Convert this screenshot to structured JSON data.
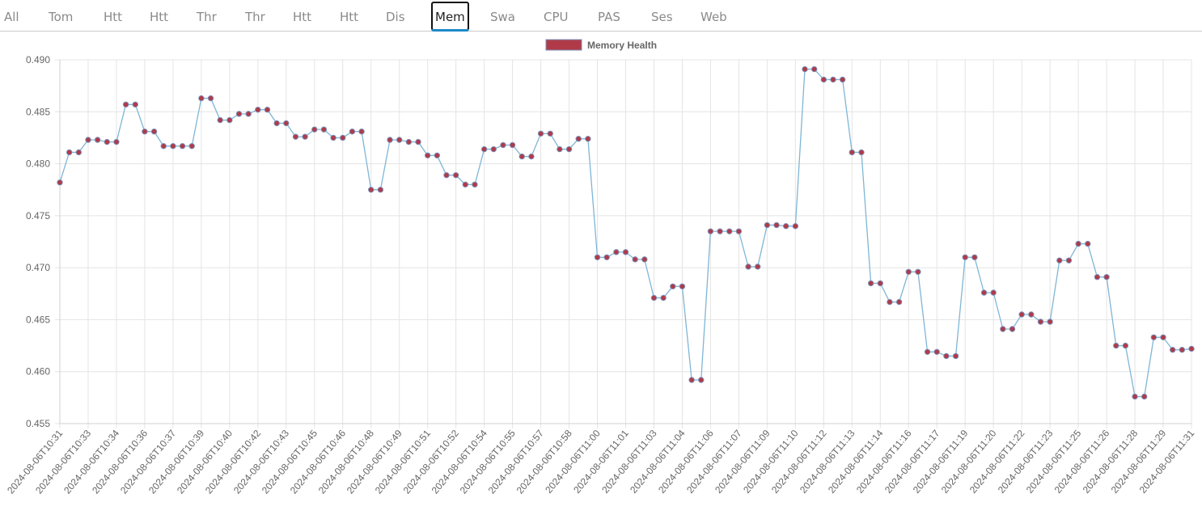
{
  "tabs": [
    {
      "label": "All"
    },
    {
      "label": "Tom"
    },
    {
      "label": "Htt"
    },
    {
      "label": "Htt"
    },
    {
      "label": "Thr"
    },
    {
      "label": "Thr"
    },
    {
      "label": "Htt"
    },
    {
      "label": "Htt"
    },
    {
      "label": "Dis"
    },
    {
      "label": "Mem",
      "active": true
    },
    {
      "label": "Swa"
    },
    {
      "label": "CPU"
    },
    {
      "label": "PAS"
    },
    {
      "label": "Ses"
    },
    {
      "label": "Web"
    }
  ],
  "colors": {
    "line": "#7fb6d6",
    "point_fill": "#b03a48",
    "point_stroke": "#7c90b8",
    "grid": "#e4e4e4"
  },
  "chart_data": {
    "type": "line",
    "title": "",
    "xlabel": "",
    "ylabel": "",
    "ylim": [
      0.455,
      0.49
    ],
    "yticks": [
      0.455,
      0.46,
      0.465,
      0.47,
      0.475,
      0.48,
      0.485,
      0.49
    ],
    "ytick_labels": [
      "0.455",
      "0.460",
      "0.465",
      "0.470",
      "0.475",
      "0.480",
      "0.485",
      "0.490"
    ],
    "grid": true,
    "legend_position": "top-center",
    "xtick_labels": [
      "2024-08-06T10:31",
      "2024-08-06T10:33",
      "2024-08-06T10:34",
      "2024-08-06T10:36",
      "2024-08-06T10:37",
      "2024-08-06T10:39",
      "2024-08-06T10:40",
      "2024-08-06T10:42",
      "2024-08-06T10:43",
      "2024-08-06T10:45",
      "2024-08-06T10:46",
      "2024-08-06T10:48",
      "2024-08-06T10:49",
      "2024-08-06T10:51",
      "2024-08-06T10:52",
      "2024-08-06T10:54",
      "2024-08-06T10:55",
      "2024-08-06T10:57",
      "2024-08-06T10:58",
      "2024-08-06T11:00",
      "2024-08-06T11:01",
      "2024-08-06T11:03",
      "2024-08-06T11:04",
      "2024-08-06T11:06",
      "2024-08-06T11:07",
      "2024-08-06T11:09",
      "2024-08-06T11:10",
      "2024-08-06T11:12",
      "2024-08-06T11:13",
      "2024-08-06T11:14",
      "2024-08-06T11:16",
      "2024-08-06T11:17",
      "2024-08-06T11:19",
      "2024-08-06T11:20",
      "2024-08-06T11:22",
      "2024-08-06T11:23",
      "2024-08-06T11:25",
      "2024-08-06T11:26",
      "2024-08-06T11:28",
      "2024-08-06T11:29",
      "2024-08-06T11:31"
    ],
    "series": [
      {
        "name": "Memory Health",
        "values": [
          0.4782,
          0.4811,
          0.4811,
          0.4823,
          0.4823,
          0.4821,
          0.4821,
          0.4857,
          0.4857,
          0.4831,
          0.4831,
          0.4817,
          0.4817,
          0.4817,
          0.4817,
          0.4863,
          0.4863,
          0.4842,
          0.4842,
          0.4848,
          0.4848,
          0.4852,
          0.4852,
          0.4839,
          0.4839,
          0.4826,
          0.4826,
          0.4833,
          0.4833,
          0.4825,
          0.4825,
          0.4831,
          0.4831,
          0.4775,
          0.4775,
          0.4823,
          0.4823,
          0.4821,
          0.4821,
          0.4808,
          0.4808,
          0.4789,
          0.4789,
          0.478,
          0.478,
          0.4814,
          0.4814,
          0.4818,
          0.4818,
          0.4807,
          0.4807,
          0.4829,
          0.4829,
          0.4814,
          0.4814,
          0.4824,
          0.4824,
          0.471,
          0.471,
          0.4715,
          0.4715,
          0.4708,
          0.4708,
          0.4671,
          0.4671,
          0.4682,
          0.4682,
          0.4592,
          0.4592,
          0.4735,
          0.4735,
          0.4735,
          0.4735,
          0.4701,
          0.4701,
          0.4741,
          0.4741,
          0.474,
          0.474,
          0.4891,
          0.4891,
          0.4881,
          0.4881,
          0.4881,
          0.4811,
          0.4811,
          0.4685,
          0.4685,
          0.4667,
          0.4667,
          0.4696,
          0.4696,
          0.4619,
          0.4619,
          0.4615,
          0.4615,
          0.471,
          0.471,
          0.4676,
          0.4676,
          0.4641,
          0.4641,
          0.4655,
          0.4655,
          0.4648,
          0.4648,
          0.4707,
          0.4707,
          0.4723,
          0.4723,
          0.4691,
          0.4691,
          0.4625,
          0.4625,
          0.4576,
          0.4576,
          0.4633,
          0.4633,
          0.4621,
          0.4621,
          0.4622
        ]
      }
    ]
  }
}
